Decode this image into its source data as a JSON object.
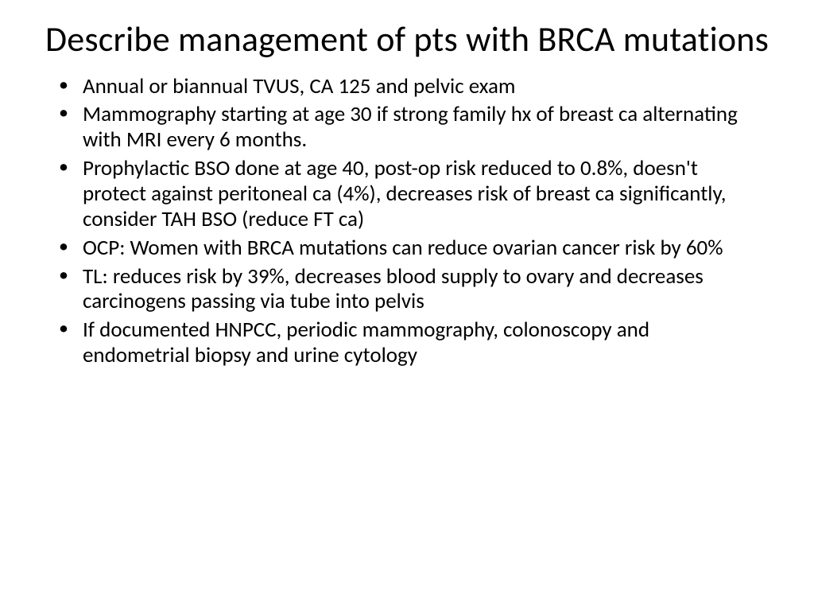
{
  "slide": {
    "title": "Describe management of pts with BRCA mutations",
    "bullets": [
      "Annual or biannual TVUS, CA 125 and pelvic exam",
      "Mammography starting at age 30 if strong family hx of breast ca alternating with MRI every 6 months.",
      "Prophylactic BSO  done at age 40, post-op risk reduced to 0.8%, doesn't protect against peritoneal ca (4%), decreases risk of breast ca significantly, consider TAH BSO (reduce FT ca)",
      "OCP:  Women with BRCA mutations can reduce ovarian cancer risk by 60%",
      "TL: reduces risk by 39%, decreases blood supply to ovary and decreases carcinogens passing via tube into pelvis",
      "If documented HNPCC, periodic mammography, colonoscopy and endometrial biopsy and urine cytology"
    ]
  },
  "style": {
    "background_color": "#ffffff",
    "text_color": "#000000",
    "title_fontsize": 44,
    "body_fontsize": 27,
    "font_family": "Calibri",
    "title_weight": 400,
    "body_weight": 400
  }
}
